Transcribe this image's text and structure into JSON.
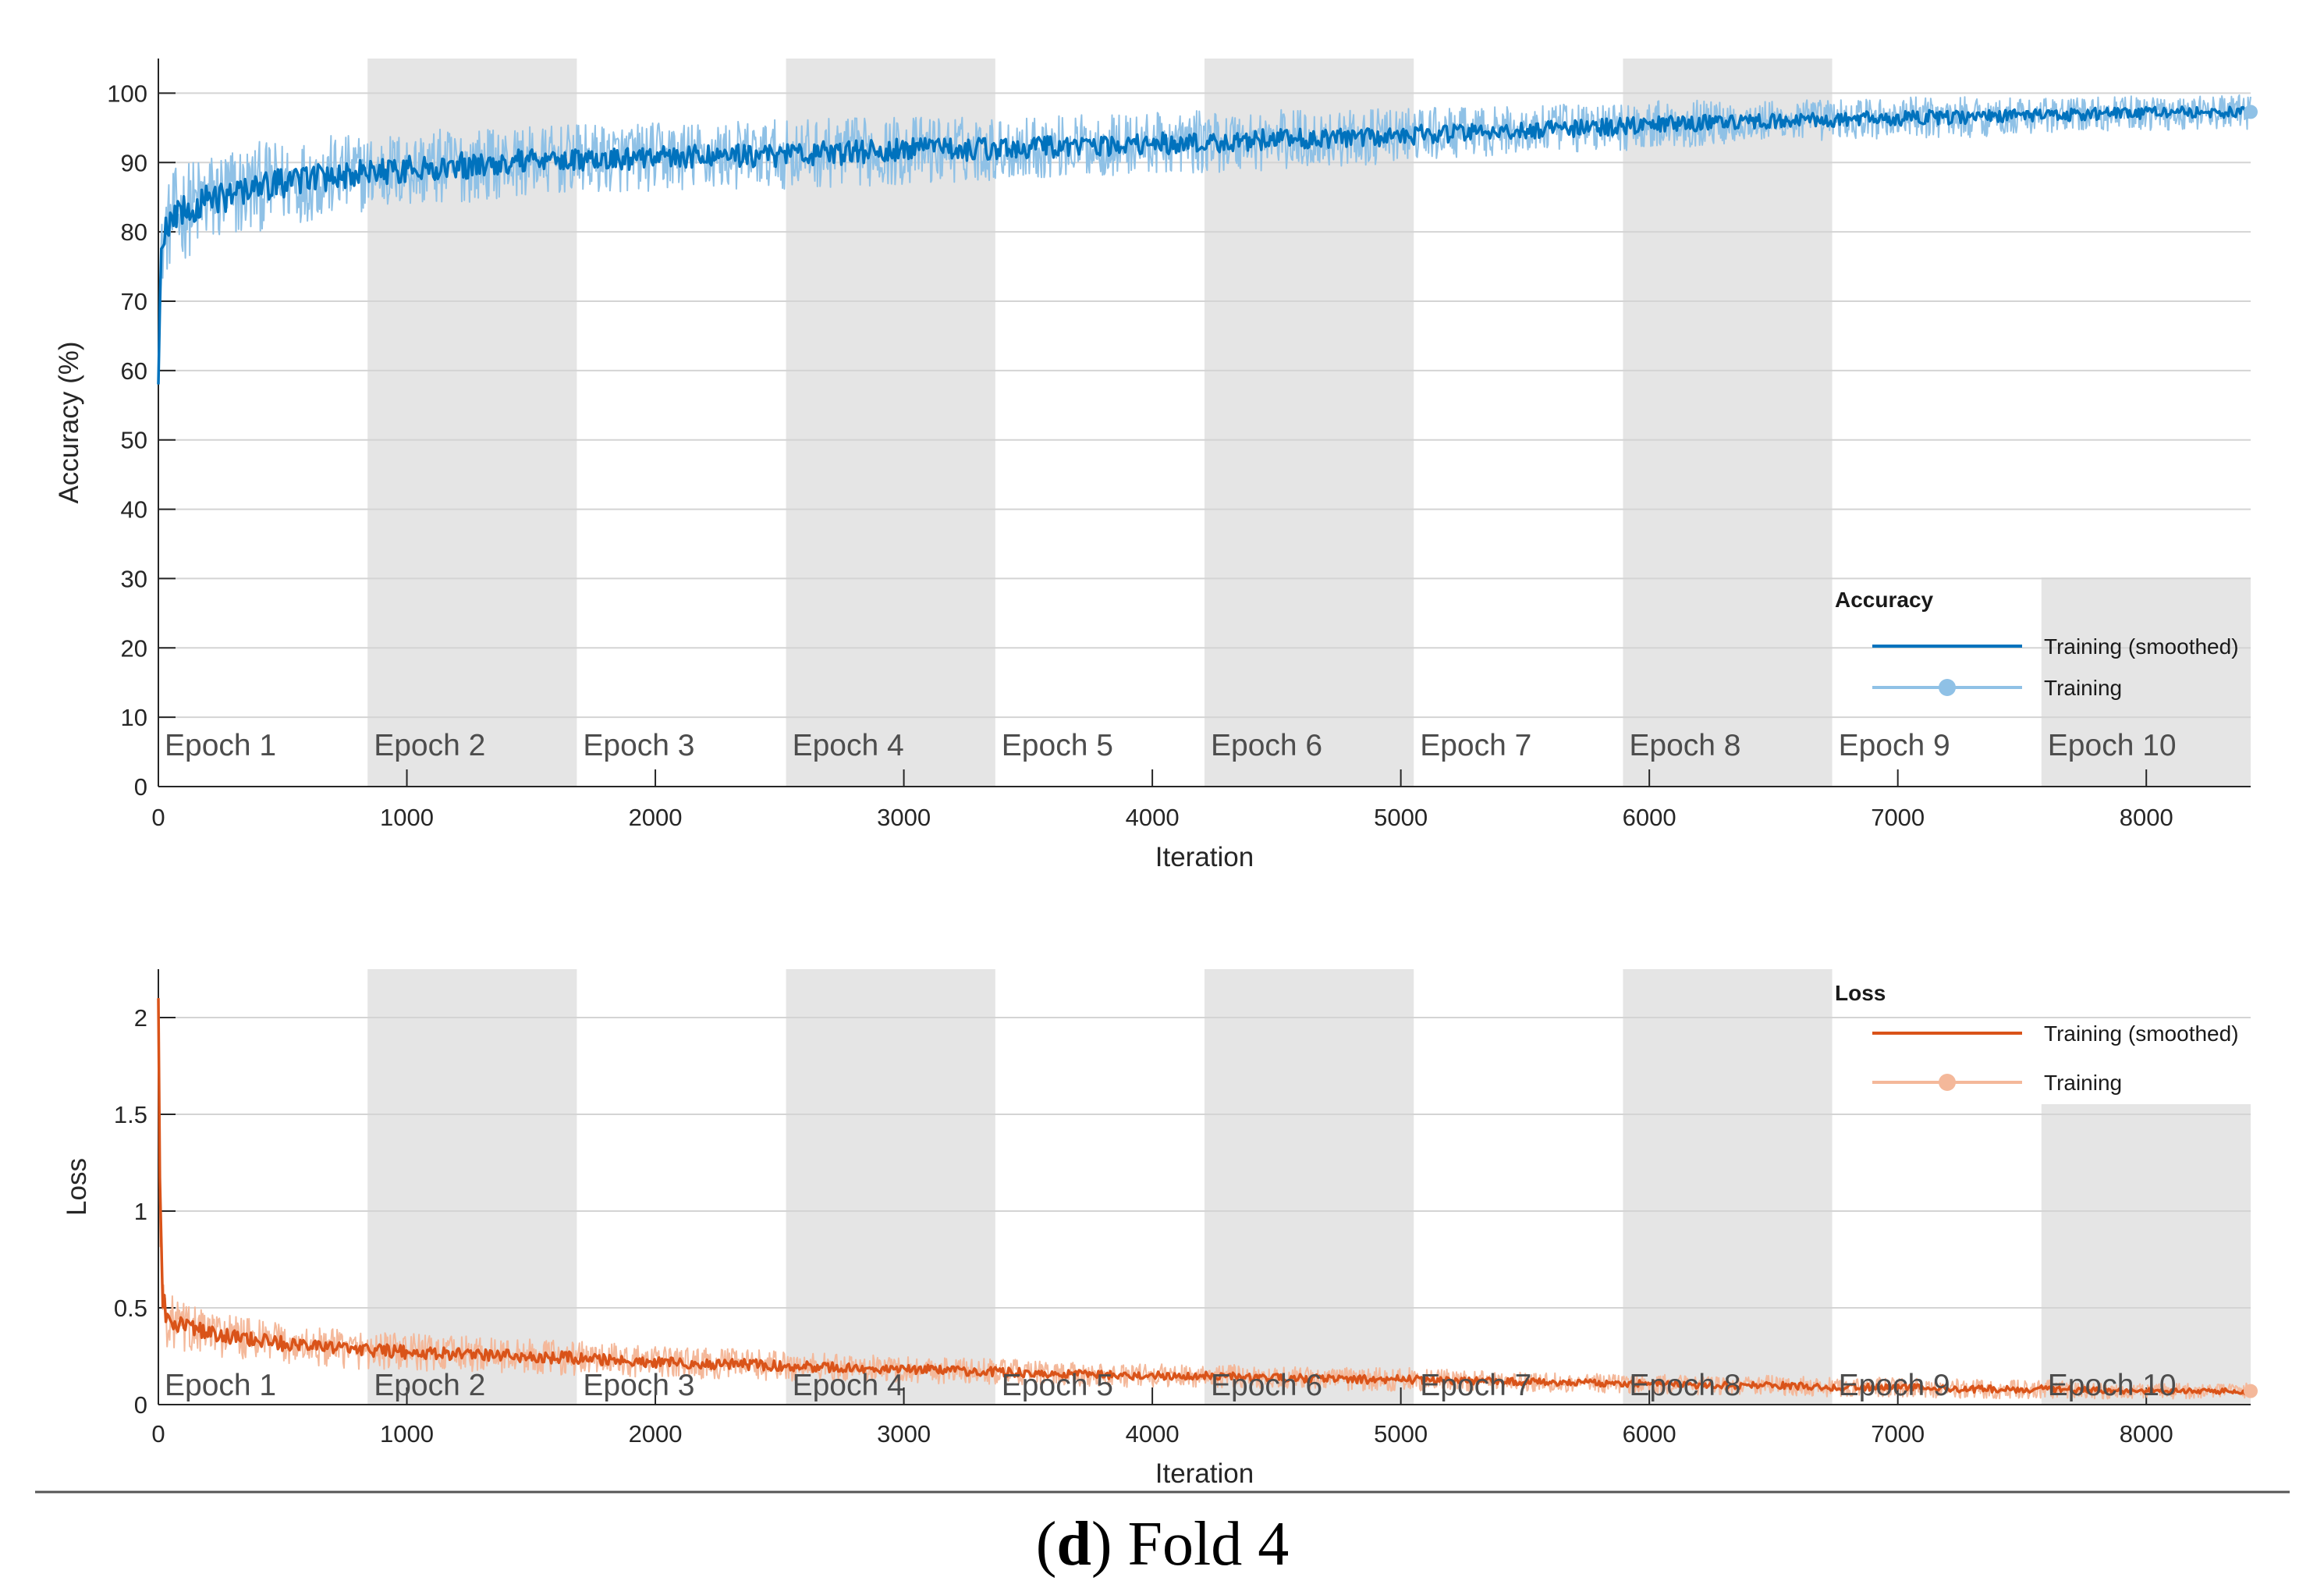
{
  "caption": {
    "letter": "d",
    "text": "Fold 4"
  },
  "chart_data": [
    {
      "type": "line",
      "name": "accuracy",
      "title": "",
      "xlabel": "Iteration",
      "ylabel": "Accuracy (%)",
      "xlim": [
        0,
        8420
      ],
      "ylim": [
        0,
        105
      ],
      "grid": true,
      "x_ticks": [
        0,
        1000,
        2000,
        3000,
        4000,
        5000,
        6000,
        7000,
        8000
      ],
      "x_tick_labels": [
        "0",
        "1000",
        "2000",
        "3000",
        "4000",
        "5000",
        "6000",
        "7000",
        "8000"
      ],
      "y_ticks": [
        0,
        10,
        20,
        30,
        40,
        50,
        60,
        70,
        80,
        90,
        100
      ],
      "y_tick_labels": [
        "0",
        "10",
        "20",
        "30",
        "40",
        "50",
        "60",
        "70",
        "80",
        "90",
        "100"
      ],
      "epochs": [
        {
          "label": "Epoch 1",
          "start": 0,
          "end": 842
        },
        {
          "label": "Epoch 2",
          "start": 842,
          "end": 1684
        },
        {
          "label": "Epoch 3",
          "start": 1684,
          "end": 2526
        },
        {
          "label": "Epoch 4",
          "start": 2526,
          "end": 3368
        },
        {
          "label": "Epoch 5",
          "start": 3368,
          "end": 4210
        },
        {
          "label": "Epoch 6",
          "start": 4210,
          "end": 5052
        },
        {
          "label": "Epoch 7",
          "start": 5052,
          "end": 5894
        },
        {
          "label": "Epoch 8",
          "start": 5894,
          "end": 6736
        },
        {
          "label": "Epoch 9",
          "start": 6736,
          "end": 7578
        },
        {
          "label": "Epoch 10",
          "start": 7578,
          "end": 8420
        }
      ],
      "legend": {
        "title": "Accuracy",
        "position": "bottom-right",
        "entries": [
          "Training (smoothed)",
          "Training"
        ]
      },
      "colors": {
        "smoothed": "#0072bd",
        "raw": "#8fc1e6",
        "shade": "#e5e5e5"
      },
      "series": [
        {
          "name": "Training (smoothed)",
          "x": [
            0,
            10,
            30,
            60,
            100,
            200,
            300,
            400,
            500,
            600,
            700,
            842,
            1000,
            1200,
            1400,
            1684,
            2000,
            2300,
            2526,
            2800,
            3100,
            3368,
            3600,
            3900,
            4210,
            4500,
            4800,
            5052,
            5300,
            5600,
            5894,
            6100,
            6400,
            6736,
            7000,
            7300,
            7578,
            7800,
            8100,
            8420
          ],
          "y": [
            58,
            76,
            80,
            82,
            83,
            84.5,
            85.5,
            86.5,
            87,
            87.5,
            88,
            88.5,
            89,
            89.5,
            90,
            90.5,
            90.8,
            91,
            91.2,
            91.5,
            91.8,
            92,
            92.3,
            92.6,
            93,
            93.3,
            93.5,
            94,
            94.4,
            94.8,
            95.2,
            95.6,
            95.9,
            96.2,
            96.4,
            96.6,
            96.8,
            97,
            97.2,
            97.3
          ]
        },
        {
          "name": "Training",
          "x": [
            0,
            10,
            30,
            60,
            100,
            200,
            300,
            400,
            500,
            600,
            700,
            842,
            1000,
            1200,
            1400,
            1684,
            2000,
            2300,
            2526,
            2800,
            3100,
            3368,
            3600,
            3900,
            4210,
            4500,
            4800,
            5052,
            5300,
            5600,
            5894,
            6100,
            6400,
            6736,
            7000,
            7300,
            7578,
            7800,
            8100,
            8420
          ],
          "y": [
            58,
            76,
            80,
            82,
            83,
            84.5,
            85.5,
            86.5,
            87,
            87.5,
            88,
            88.5,
            89,
            89.5,
            90,
            90.5,
            90.8,
            91,
            91.2,
            91.5,
            91.8,
            92,
            92.3,
            92.6,
            93,
            93.3,
            93.5,
            94,
            94.4,
            94.8,
            95.2,
            95.6,
            95.9,
            96.2,
            96.4,
            96.6,
            96.8,
            97,
            97.2,
            97.3
          ],
          "noise_amplitude": [
            0,
            5,
            6,
            7,
            7,
            7,
            7,
            6.5,
            6,
            6,
            6,
            5.5,
            5.5,
            5.5,
            5,
            5,
            5,
            5,
            5,
            5,
            5,
            4.5,
            4.5,
            4.5,
            4.5,
            4.5,
            4,
            4,
            3.5,
            3.5,
            3.5,
            3.5,
            3,
            3,
            3,
            3,
            2.5,
            2.5,
            2.5,
            2.5
          ]
        }
      ]
    },
    {
      "type": "line",
      "name": "loss",
      "title": "",
      "xlabel": "Iteration",
      "ylabel": "Loss",
      "xlim": [
        0,
        8420
      ],
      "ylim": [
        0,
        2.25
      ],
      "grid": true,
      "x_ticks": [
        0,
        1000,
        2000,
        3000,
        4000,
        5000,
        6000,
        7000,
        8000
      ],
      "x_tick_labels": [
        "0",
        "1000",
        "2000",
        "3000",
        "4000",
        "5000",
        "6000",
        "7000",
        "8000"
      ],
      "y_ticks": [
        0,
        0.5,
        1,
        1.5,
        2
      ],
      "y_tick_labels": [
        "0",
        "0.5",
        "1",
        "1.5",
        "2"
      ],
      "epochs": [
        {
          "label": "Epoch 1",
          "start": 0,
          "end": 842
        },
        {
          "label": "Epoch 2",
          "start": 842,
          "end": 1684
        },
        {
          "label": "Epoch 3",
          "start": 1684,
          "end": 2526
        },
        {
          "label": "Epoch 4",
          "start": 2526,
          "end": 3368
        },
        {
          "label": "Epoch 5",
          "start": 3368,
          "end": 4210
        },
        {
          "label": "Epoch 6",
          "start": 4210,
          "end": 5052
        },
        {
          "label": "Epoch 7",
          "start": 5052,
          "end": 5894
        },
        {
          "label": "Epoch 8",
          "start": 5894,
          "end": 6736
        },
        {
          "label": "Epoch 9",
          "start": 6736,
          "end": 7578
        },
        {
          "label": "Epoch 10",
          "start": 7578,
          "end": 8420
        }
      ],
      "legend": {
        "title": "Loss",
        "position": "top-right",
        "entries": [
          "Training (smoothed)",
          "Training"
        ]
      },
      "colors": {
        "smoothed": "#d95319",
        "raw": "#f4b89a",
        "shade": "#e5e5e5"
      },
      "series": [
        {
          "name": "Training (smoothed)",
          "x": [
            0,
            5,
            15,
            30,
            60,
            100,
            200,
            400,
            600,
            842,
            1000,
            1300,
            1684,
            2000,
            2300,
            2526,
            2800,
            3100,
            3368,
            3600,
            3900,
            4210,
            4500,
            4800,
            5052,
            5400,
            5894,
            6200,
            6500,
            6736,
            7000,
            7300,
            7578,
            7900,
            8200,
            8420
          ],
          "y": [
            2.1,
            1.2,
            0.6,
            0.45,
            0.42,
            0.4,
            0.37,
            0.33,
            0.3,
            0.28,
            0.27,
            0.26,
            0.24,
            0.22,
            0.21,
            0.2,
            0.19,
            0.18,
            0.17,
            0.16,
            0.15,
            0.15,
            0.14,
            0.13,
            0.13,
            0.12,
            0.11,
            0.1,
            0.1,
            0.09,
            0.09,
            0.08,
            0.08,
            0.07,
            0.07,
            0.07
          ]
        },
        {
          "name": "Training",
          "x": [
            0,
            5,
            15,
            30,
            60,
            100,
            200,
            400,
            600,
            842,
            1000,
            1300,
            1684,
            2000,
            2300,
            2526,
            2800,
            3100,
            3368,
            3600,
            3900,
            4210,
            4500,
            4800,
            5052,
            5400,
            5894,
            6200,
            6500,
            6736,
            7000,
            7300,
            7578,
            7900,
            8200,
            8420
          ],
          "y": [
            2.1,
            1.2,
            0.6,
            0.45,
            0.42,
            0.4,
            0.37,
            0.33,
            0.3,
            0.28,
            0.27,
            0.26,
            0.24,
            0.22,
            0.21,
            0.2,
            0.19,
            0.18,
            0.17,
            0.16,
            0.15,
            0.15,
            0.14,
            0.13,
            0.13,
            0.12,
            0.11,
            0.1,
            0.1,
            0.09,
            0.09,
            0.08,
            0.08,
            0.07,
            0.07,
            0.07
          ],
          "noise_amplitude": [
            0,
            0.3,
            0.2,
            0.15,
            0.14,
            0.13,
            0.12,
            0.11,
            0.1,
            0.1,
            0.1,
            0.09,
            0.09,
            0.08,
            0.08,
            0.08,
            0.07,
            0.07,
            0.07,
            0.06,
            0.06,
            0.06,
            0.06,
            0.06,
            0.06,
            0.05,
            0.05,
            0.05,
            0.05,
            0.05,
            0.05,
            0.05,
            0.05,
            0.04,
            0.04,
            0.04
          ]
        }
      ]
    }
  ]
}
